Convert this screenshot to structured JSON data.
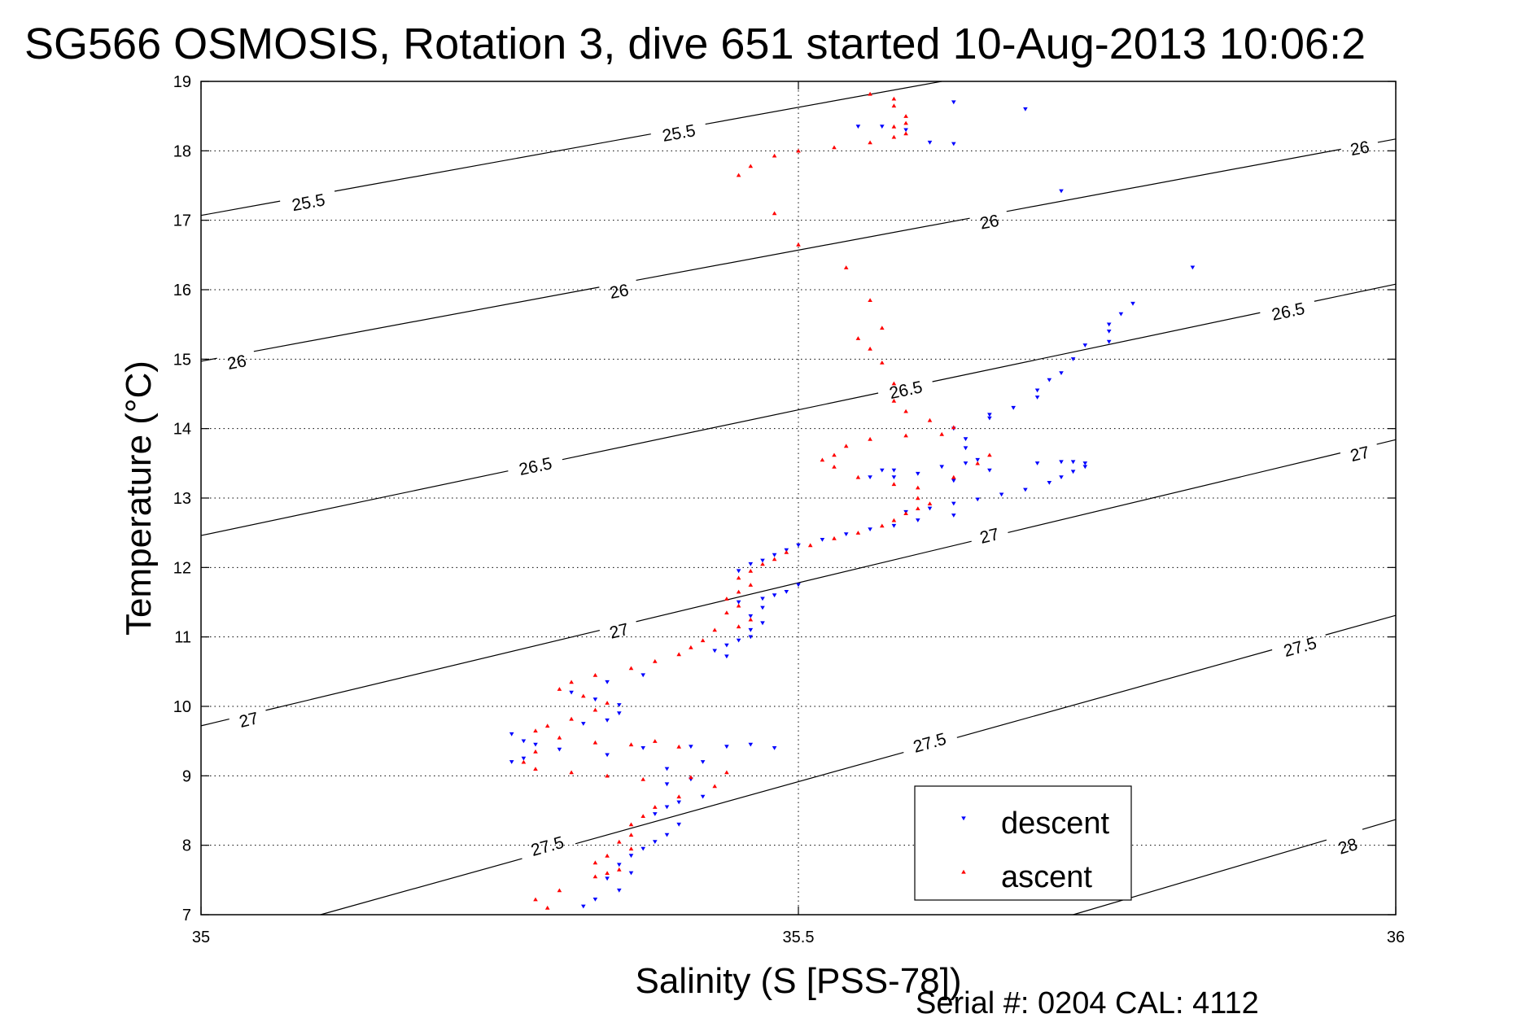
{
  "chart_data": {
    "type": "scatter",
    "title": "SG566 OSMOSIS, Rotation 3, dive 651 started 10-Aug-2013 10:06:2",
    "xlabel": "Salinity (S [PSS-78])",
    "ylabel": "Temperature (°C)",
    "xlim": [
      35,
      36
    ],
    "ylim": [
      7,
      19
    ],
    "x_ticks": [
      "35",
      "35.5",
      "36"
    ],
    "y_ticks": [
      "7",
      "8",
      "9",
      "10",
      "11",
      "12",
      "13",
      "14",
      "15",
      "16",
      "17",
      "18",
      "19"
    ],
    "grid": true,
    "legend_position": "bottom-right",
    "footer": "Serial #: 0204  CAL: 4112",
    "density_contours": [
      {
        "label": "25.5",
        "points": [
          [
            35,
            17.07
          ],
          [
            35.62,
            19.0
          ]
        ],
        "label_at": [
          [
            35.09,
            17.25
          ],
          [
            35.4,
            18.25
          ]
        ]
      },
      {
        "label": "26",
        "points": [
          [
            35,
            14.97
          ],
          [
            36,
            18.17
          ]
        ],
        "label_at": [
          [
            35.03,
            14.95
          ],
          [
            35.35,
            15.97
          ],
          [
            35.66,
            16.97
          ],
          [
            35.97,
            18.03
          ]
        ]
      },
      {
        "label": "26.5",
        "points": [
          [
            35,
            12.46
          ],
          [
            36,
            16.08
          ]
        ],
        "label_at": [
          [
            35.28,
            13.45
          ],
          [
            35.59,
            14.55
          ],
          [
            35.91,
            15.68
          ]
        ]
      },
      {
        "label": "27",
        "points": [
          [
            35,
            9.72
          ],
          [
            36,
            13.84
          ]
        ],
        "label_at": [
          [
            35.04,
            9.8
          ],
          [
            35.35,
            11.08
          ],
          [
            35.66,
            12.45
          ],
          [
            35.97,
            13.63
          ]
        ]
      },
      {
        "label": "27.5",
        "points": [
          [
            35.1,
            7.0
          ],
          [
            36,
            11.31
          ]
        ],
        "label_at": [
          [
            35.29,
            7.98
          ],
          [
            35.61,
            9.47
          ],
          [
            35.92,
            10.85
          ]
        ]
      },
      {
        "label": "28",
        "points": [
          [
            35.73,
            7.0
          ],
          [
            36,
            8.37
          ]
        ],
        "label_at": [
          [
            35.96,
            7.98
          ]
        ]
      }
    ],
    "series": [
      {
        "name": "descent",
        "color": "#0000ff",
        "marker": "triangle-down",
        "points": [
          [
            35.63,
            18.7
          ],
          [
            35.69,
            18.6
          ],
          [
            35.57,
            18.35
          ],
          [
            35.55,
            18.35
          ],
          [
            35.59,
            18.3
          ],
          [
            35.61,
            18.12
          ],
          [
            35.63,
            18.1
          ],
          [
            35.72,
            17.42
          ],
          [
            35.83,
            16.32
          ],
          [
            35.78,
            15.8
          ],
          [
            35.77,
            15.65
          ],
          [
            35.76,
            15.5
          ],
          [
            35.76,
            15.4
          ],
          [
            35.76,
            15.25
          ],
          [
            35.74,
            15.2
          ],
          [
            35.73,
            15.0
          ],
          [
            35.72,
            14.8
          ],
          [
            35.71,
            14.7
          ],
          [
            35.7,
            14.55
          ],
          [
            35.7,
            14.45
          ],
          [
            35.68,
            14.3
          ],
          [
            35.66,
            14.2
          ],
          [
            35.66,
            14.15
          ],
          [
            35.63,
            14.0
          ],
          [
            35.64,
            13.85
          ],
          [
            35.64,
            13.72
          ],
          [
            35.65,
            13.55
          ],
          [
            35.64,
            13.5
          ],
          [
            35.62,
            13.45
          ],
          [
            35.58,
            13.4
          ],
          [
            35.6,
            13.35
          ],
          [
            35.57,
            13.4
          ],
          [
            35.58,
            13.3
          ],
          [
            35.63,
            13.25
          ],
          [
            35.56,
            13.3
          ],
          [
            35.7,
            13.5
          ],
          [
            35.72,
            13.52
          ],
          [
            35.73,
            13.52
          ],
          [
            35.74,
            13.5
          ],
          [
            35.74,
            13.45
          ],
          [
            35.73,
            13.38
          ],
          [
            35.72,
            13.3
          ],
          [
            35.71,
            13.22
          ],
          [
            35.69,
            13.12
          ],
          [
            35.67,
            13.05
          ],
          [
            35.65,
            12.98
          ],
          [
            35.63,
            12.92
          ],
          [
            35.61,
            12.85
          ],
          [
            35.59,
            12.8
          ],
          [
            35.66,
            13.4
          ],
          [
            35.63,
            12.75
          ],
          [
            35.6,
            12.68
          ],
          [
            35.58,
            12.6
          ],
          [
            35.56,
            12.55
          ],
          [
            35.54,
            12.48
          ],
          [
            35.52,
            12.4
          ],
          [
            35.5,
            12.32
          ],
          [
            35.49,
            12.25
          ],
          [
            35.48,
            12.18
          ],
          [
            35.47,
            12.1
          ],
          [
            35.46,
            12.05
          ],
          [
            35.45,
            11.95
          ],
          [
            35.5,
            11.75
          ],
          [
            35.49,
            11.65
          ],
          [
            35.48,
            11.6
          ],
          [
            35.47,
            11.55
          ],
          [
            35.45,
            11.5
          ],
          [
            35.47,
            11.42
          ],
          [
            35.46,
            11.3
          ],
          [
            35.47,
            11.2
          ],
          [
            35.46,
            11.1
          ],
          [
            35.46,
            11.0
          ],
          [
            35.45,
            10.95
          ],
          [
            35.44,
            10.88
          ],
          [
            35.43,
            10.8
          ],
          [
            35.44,
            10.72
          ],
          [
            35.37,
            10.45
          ],
          [
            35.34,
            10.35
          ],
          [
            35.31,
            10.2
          ],
          [
            35.33,
            10.1
          ],
          [
            35.35,
            10.02
          ],
          [
            35.35,
            9.9
          ],
          [
            35.34,
            9.8
          ],
          [
            35.32,
            9.75
          ],
          [
            35.26,
            9.6
          ],
          [
            35.27,
            9.5
          ],
          [
            35.28,
            9.45
          ],
          [
            35.3,
            9.38
          ],
          [
            35.27,
            9.25
          ],
          [
            35.26,
            9.2
          ],
          [
            35.34,
            9.3
          ],
          [
            35.37,
            9.4
          ],
          [
            35.41,
            9.42
          ],
          [
            35.44,
            9.42
          ],
          [
            35.46,
            9.45
          ],
          [
            35.48,
            9.4
          ],
          [
            35.42,
            9.2
          ],
          [
            35.39,
            9.1
          ],
          [
            35.41,
            8.95
          ],
          [
            35.39,
            8.88
          ],
          [
            35.42,
            8.7
          ],
          [
            35.4,
            8.62
          ],
          [
            35.39,
            8.55
          ],
          [
            35.38,
            8.45
          ],
          [
            35.4,
            8.3
          ],
          [
            35.39,
            8.15
          ],
          [
            35.38,
            8.05
          ],
          [
            35.37,
            7.95
          ],
          [
            35.36,
            7.85
          ],
          [
            35.35,
            7.72
          ],
          [
            35.36,
            7.6
          ],
          [
            35.34,
            7.52
          ],
          [
            35.35,
            7.35
          ],
          [
            35.33,
            7.22
          ],
          [
            35.32,
            7.12
          ]
        ]
      },
      {
        "name": "ascent",
        "color": "#ff0000",
        "marker": "triangle-up",
        "points": [
          [
            35.56,
            18.82
          ],
          [
            35.58,
            18.75
          ],
          [
            35.58,
            18.65
          ],
          [
            35.59,
            18.5
          ],
          [
            35.59,
            18.4
          ],
          [
            35.58,
            18.35
          ],
          [
            35.59,
            18.25
          ],
          [
            35.58,
            18.2
          ],
          [
            35.56,
            18.12
          ],
          [
            35.53,
            18.05
          ],
          [
            35.5,
            18.0
          ],
          [
            35.48,
            17.93
          ],
          [
            35.46,
            17.78
          ],
          [
            35.45,
            17.65
          ],
          [
            35.48,
            17.1
          ],
          [
            35.5,
            16.65
          ],
          [
            35.54,
            16.32
          ],
          [
            35.56,
            15.85
          ],
          [
            35.57,
            15.45
          ],
          [
            35.55,
            15.3
          ],
          [
            35.56,
            15.15
          ],
          [
            35.57,
            14.95
          ],
          [
            35.58,
            14.65
          ],
          [
            35.58,
            14.4
          ],
          [
            35.59,
            14.25
          ],
          [
            35.61,
            14.12
          ],
          [
            35.63,
            14.02
          ],
          [
            35.62,
            13.92
          ],
          [
            35.59,
            13.9
          ],
          [
            35.56,
            13.85
          ],
          [
            35.54,
            13.75
          ],
          [
            35.53,
            13.62
          ],
          [
            35.52,
            13.55
          ],
          [
            35.53,
            13.45
          ],
          [
            35.55,
            13.3
          ],
          [
            35.58,
            13.2
          ],
          [
            35.6,
            13.15
          ],
          [
            35.63,
            13.3
          ],
          [
            35.65,
            13.5
          ],
          [
            35.66,
            13.62
          ],
          [
            35.6,
            13.0
          ],
          [
            35.61,
            12.92
          ],
          [
            35.6,
            12.85
          ],
          [
            35.59,
            12.78
          ],
          [
            35.58,
            12.68
          ],
          [
            35.57,
            12.6
          ],
          [
            35.55,
            12.5
          ],
          [
            35.53,
            12.42
          ],
          [
            35.51,
            12.32
          ],
          [
            35.49,
            12.22
          ],
          [
            35.48,
            12.12
          ],
          [
            35.47,
            12.05
          ],
          [
            35.46,
            11.95
          ],
          [
            35.45,
            11.85
          ],
          [
            35.46,
            11.75
          ],
          [
            35.45,
            11.65
          ],
          [
            35.44,
            11.55
          ],
          [
            35.45,
            11.45
          ],
          [
            35.44,
            11.35
          ],
          [
            35.46,
            11.25
          ],
          [
            35.45,
            11.15
          ],
          [
            35.43,
            11.1
          ],
          [
            35.42,
            10.95
          ],
          [
            35.41,
            10.85
          ],
          [
            35.4,
            10.75
          ],
          [
            35.38,
            10.65
          ],
          [
            35.36,
            10.55
          ],
          [
            35.33,
            10.45
          ],
          [
            35.31,
            10.35
          ],
          [
            35.3,
            10.25
          ],
          [
            35.32,
            10.15
          ],
          [
            35.34,
            10.05
          ],
          [
            35.33,
            9.95
          ],
          [
            35.31,
            9.82
          ],
          [
            35.29,
            9.72
          ],
          [
            35.28,
            9.65
          ],
          [
            35.3,
            9.55
          ],
          [
            35.33,
            9.48
          ],
          [
            35.36,
            9.45
          ],
          [
            35.38,
            9.5
          ],
          [
            35.4,
            9.42
          ],
          [
            35.28,
            9.35
          ],
          [
            35.27,
            9.2
          ],
          [
            35.28,
            9.1
          ],
          [
            35.31,
            9.05
          ],
          [
            35.34,
            9.0
          ],
          [
            35.37,
            8.95
          ],
          [
            35.41,
            8.98
          ],
          [
            35.44,
            9.05
          ],
          [
            35.43,
            8.85
          ],
          [
            35.4,
            8.7
          ],
          [
            35.38,
            8.55
          ],
          [
            35.37,
            8.42
          ],
          [
            35.36,
            8.3
          ],
          [
            35.36,
            8.15
          ],
          [
            35.35,
            8.05
          ],
          [
            35.36,
            7.95
          ],
          [
            35.34,
            7.85
          ],
          [
            35.33,
            7.75
          ],
          [
            35.35,
            7.65
          ],
          [
            35.34,
            7.6
          ],
          [
            35.33,
            7.55
          ],
          [
            35.3,
            7.35
          ],
          [
            35.28,
            7.22
          ],
          [
            35.29,
            7.1
          ]
        ]
      }
    ]
  },
  "colors": {
    "descent": "#0000ff",
    "ascent": "#ff0000",
    "axes": "#000000",
    "grid": "#000000",
    "background": "#ffffff"
  }
}
